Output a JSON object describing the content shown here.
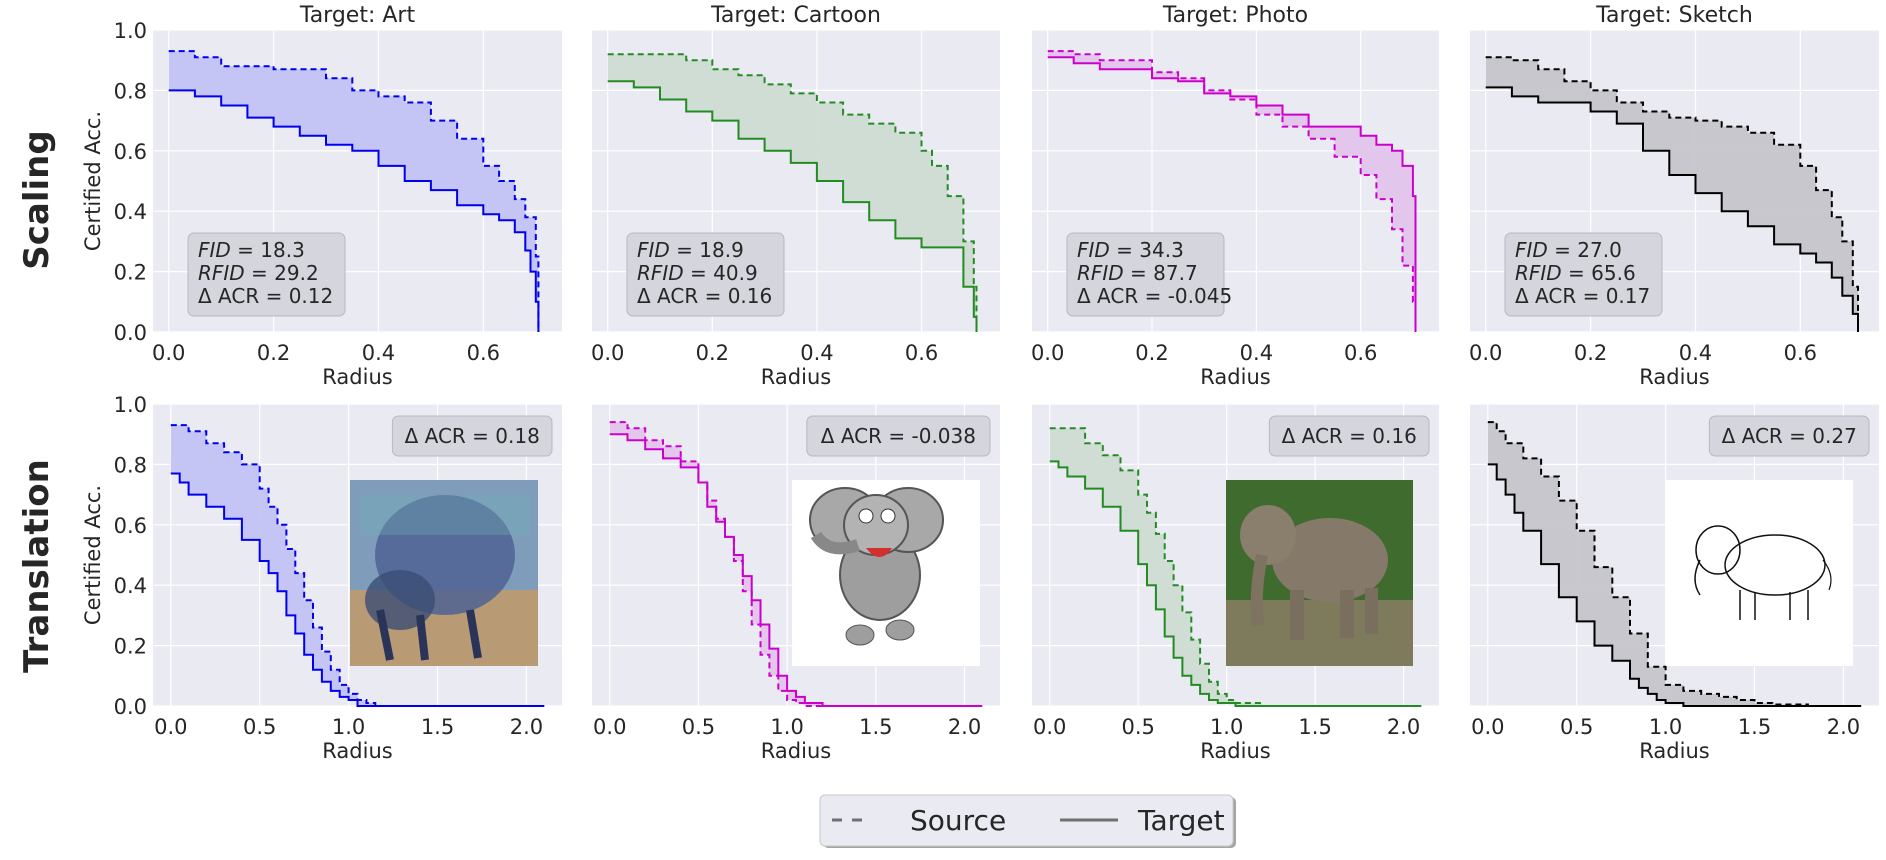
{
  "row_labels": [
    "Scaling",
    "Translation"
  ],
  "legend": {
    "source": "Source",
    "target": "Target"
  },
  "colors": {
    "Art": "#0000ee",
    "Cartoon": "#228b22",
    "Photo": "#cc00cc",
    "Sketch": "#000000",
    "panel_bg": "#eaeaf2",
    "grid": "#ffffff"
  },
  "chart_data": [
    {
      "type": "line",
      "row": "Scaling",
      "title": "Target: Art",
      "xlabel": "Radius",
      "ylabel": "Certified Acc.",
      "xlim": [
        -0.03,
        0.75
      ],
      "ylim": [
        0,
        1
      ],
      "xticks": [
        0.0,
        0.2,
        0.4,
        0.6
      ],
      "yticks": [
        0.0,
        0.2,
        0.4,
        0.6,
        0.8,
        1.0
      ],
      "color": "#0000ee",
      "annotation": [
        "FID = 18.3",
        "RFID = 29.2",
        "Δ ACR = 0.12"
      ],
      "series": [
        {
          "name": "Source",
          "style": "dashed",
          "x": [
            0,
            0.05,
            0.1,
            0.2,
            0.3,
            0.35,
            0.4,
            0.45,
            0.5,
            0.55,
            0.6,
            0.63,
            0.66,
            0.68,
            0.7,
            0.705
          ],
          "y": [
            0.93,
            0.91,
            0.88,
            0.87,
            0.84,
            0.8,
            0.78,
            0.76,
            0.7,
            0.64,
            0.55,
            0.5,
            0.44,
            0.38,
            0.25,
            0.0
          ]
        },
        {
          "name": "Target",
          "style": "solid",
          "x": [
            0,
            0.05,
            0.1,
            0.15,
            0.2,
            0.25,
            0.3,
            0.35,
            0.4,
            0.45,
            0.5,
            0.55,
            0.6,
            0.63,
            0.66,
            0.68,
            0.69,
            0.7,
            0.705
          ],
          "y": [
            0.8,
            0.78,
            0.75,
            0.71,
            0.68,
            0.65,
            0.62,
            0.6,
            0.55,
            0.5,
            0.47,
            0.42,
            0.39,
            0.37,
            0.33,
            0.27,
            0.2,
            0.1,
            0.0
          ]
        }
      ]
    },
    {
      "type": "line",
      "row": "Scaling",
      "title": "Target: Cartoon",
      "xlabel": "Radius",
      "ylabel": "",
      "xlim": [
        -0.03,
        0.75
      ],
      "ylim": [
        0,
        1
      ],
      "xticks": [
        0.0,
        0.2,
        0.4,
        0.6
      ],
      "yticks": [
        0.0,
        0.2,
        0.4,
        0.6,
        0.8,
        1.0
      ],
      "color": "#228b22",
      "annotation": [
        "FID = 18.9",
        "RFID = 40.9",
        "Δ ACR = 0.16"
      ],
      "series": [
        {
          "name": "Source",
          "style": "dashed",
          "x": [
            0,
            0.1,
            0.15,
            0.2,
            0.25,
            0.3,
            0.35,
            0.4,
            0.45,
            0.5,
            0.55,
            0.6,
            0.62,
            0.65,
            0.68,
            0.7,
            0.705
          ],
          "y": [
            0.92,
            0.92,
            0.9,
            0.87,
            0.85,
            0.82,
            0.79,
            0.76,
            0.72,
            0.69,
            0.66,
            0.6,
            0.55,
            0.45,
            0.3,
            0.15,
            0.0
          ]
        },
        {
          "name": "Target",
          "style": "solid",
          "x": [
            0,
            0.05,
            0.1,
            0.15,
            0.2,
            0.25,
            0.3,
            0.35,
            0.4,
            0.45,
            0.5,
            0.55,
            0.6,
            0.65,
            0.68,
            0.7,
            0.705
          ],
          "y": [
            0.83,
            0.81,
            0.77,
            0.73,
            0.7,
            0.64,
            0.6,
            0.56,
            0.5,
            0.43,
            0.37,
            0.31,
            0.28,
            0.28,
            0.15,
            0.05,
            0.0
          ]
        }
      ]
    },
    {
      "type": "line",
      "row": "Scaling",
      "title": "Target: Photo",
      "xlabel": "Radius",
      "ylabel": "",
      "xlim": [
        -0.03,
        0.75
      ],
      "ylim": [
        0,
        1
      ],
      "xticks": [
        0.0,
        0.2,
        0.4,
        0.6
      ],
      "yticks": [
        0.0,
        0.2,
        0.4,
        0.6,
        0.8,
        1.0
      ],
      "color": "#cc00cc",
      "annotation": [
        "FID = 34.3",
        "RFID = 87.7",
        "Δ ACR = -0.045"
      ],
      "series": [
        {
          "name": "Source",
          "style": "dashed",
          "x": [
            0,
            0.05,
            0.1,
            0.2,
            0.25,
            0.3,
            0.35,
            0.4,
            0.45,
            0.5,
            0.55,
            0.6,
            0.63,
            0.66,
            0.68,
            0.7,
            0.705
          ],
          "y": [
            0.93,
            0.92,
            0.9,
            0.86,
            0.84,
            0.8,
            0.77,
            0.72,
            0.68,
            0.64,
            0.58,
            0.52,
            0.44,
            0.34,
            0.22,
            0.1,
            0.0
          ]
        },
        {
          "name": "Target",
          "style": "solid",
          "x": [
            0,
            0.05,
            0.1,
            0.2,
            0.25,
            0.3,
            0.35,
            0.4,
            0.45,
            0.5,
            0.55,
            0.6,
            0.63,
            0.66,
            0.68,
            0.7,
            0.705
          ],
          "y": [
            0.91,
            0.89,
            0.87,
            0.84,
            0.83,
            0.79,
            0.78,
            0.75,
            0.72,
            0.68,
            0.68,
            0.65,
            0.62,
            0.6,
            0.55,
            0.45,
            0.0
          ]
        }
      ]
    },
    {
      "type": "line",
      "row": "Scaling",
      "title": "Target: Sketch",
      "xlabel": "Radius",
      "ylabel": "",
      "xlim": [
        -0.03,
        0.75
      ],
      "ylim": [
        0,
        1
      ],
      "xticks": [
        0.0,
        0.2,
        0.4,
        0.6
      ],
      "yticks": [
        0.0,
        0.2,
        0.4,
        0.6,
        0.8,
        1.0
      ],
      "color": "#000000",
      "annotation": [
        "FID = 27.0",
        "RFID = 65.6",
        "Δ ACR = 0.17"
      ],
      "series": [
        {
          "name": "Source",
          "style": "dashed",
          "x": [
            0,
            0.05,
            0.1,
            0.15,
            0.2,
            0.25,
            0.3,
            0.35,
            0.4,
            0.45,
            0.5,
            0.55,
            0.6,
            0.63,
            0.66,
            0.68,
            0.7,
            0.71
          ],
          "y": [
            0.91,
            0.9,
            0.87,
            0.83,
            0.8,
            0.76,
            0.73,
            0.71,
            0.7,
            0.68,
            0.66,
            0.62,
            0.55,
            0.47,
            0.38,
            0.3,
            0.15,
            0.0
          ]
        },
        {
          "name": "Target",
          "style": "solid",
          "x": [
            0,
            0.05,
            0.1,
            0.15,
            0.2,
            0.25,
            0.3,
            0.35,
            0.4,
            0.45,
            0.5,
            0.55,
            0.6,
            0.63,
            0.66,
            0.68,
            0.7,
            0.71
          ],
          "y": [
            0.81,
            0.78,
            0.76,
            0.76,
            0.73,
            0.69,
            0.6,
            0.52,
            0.46,
            0.4,
            0.35,
            0.29,
            0.26,
            0.23,
            0.18,
            0.12,
            0.06,
            0.0
          ]
        }
      ]
    },
    {
      "type": "line",
      "row": "Translation",
      "title": "",
      "xlabel": "Radius",
      "ylabel": "Certified Acc.",
      "xlim": [
        -0.1,
        2.2
      ],
      "ylim": [
        0,
        1
      ],
      "xticks": [
        0.0,
        0.5,
        1.0,
        1.5,
        2.0
      ],
      "yticks": [
        0.0,
        0.2,
        0.4,
        0.6,
        0.8,
        1.0
      ],
      "color": "#0000ee",
      "annotation": [
        "Δ ACR = 0.18"
      ],
      "series": [
        {
          "name": "Source",
          "style": "dashed",
          "x": [
            0,
            0.1,
            0.2,
            0.3,
            0.4,
            0.5,
            0.55,
            0.6,
            0.65,
            0.7,
            0.75,
            0.8,
            0.85,
            0.9,
            0.95,
            1.0,
            1.05,
            1.1,
            1.15,
            2.1
          ],
          "y": [
            0.93,
            0.91,
            0.87,
            0.84,
            0.8,
            0.72,
            0.66,
            0.6,
            0.52,
            0.44,
            0.35,
            0.26,
            0.18,
            0.12,
            0.07,
            0.04,
            0.02,
            0.01,
            0.0,
            0.0
          ]
        },
        {
          "name": "Target",
          "style": "solid",
          "x": [
            0,
            0.05,
            0.1,
            0.2,
            0.3,
            0.4,
            0.5,
            0.55,
            0.6,
            0.65,
            0.7,
            0.75,
            0.8,
            0.85,
            0.9,
            0.95,
            1.0,
            1.05,
            2.1
          ],
          "y": [
            0.77,
            0.74,
            0.7,
            0.66,
            0.62,
            0.55,
            0.48,
            0.44,
            0.38,
            0.3,
            0.24,
            0.17,
            0.12,
            0.08,
            0.05,
            0.03,
            0.02,
            0.0,
            0.0
          ]
        }
      ]
    },
    {
      "type": "line",
      "row": "Translation",
      "title": "",
      "xlabel": "Radius",
      "ylabel": "",
      "xlim": [
        -0.1,
        2.2
      ],
      "ylim": [
        0,
        1
      ],
      "xticks": [
        0.0,
        0.5,
        1.0,
        1.5,
        2.0
      ],
      "yticks": [
        0.0,
        0.2,
        0.4,
        0.6,
        0.8,
        1.0
      ],
      "color": "#cc00cc",
      "annotation": [
        "Δ ACR = -0.038"
      ],
      "series": [
        {
          "name": "Source",
          "style": "dashed",
          "x": [
            0,
            0.1,
            0.2,
            0.3,
            0.4,
            0.5,
            0.55,
            0.6,
            0.65,
            0.7,
            0.75,
            0.8,
            0.85,
            0.9,
            0.95,
            1.0,
            1.05,
            1.1,
            2.1
          ],
          "y": [
            0.94,
            0.92,
            0.88,
            0.86,
            0.81,
            0.74,
            0.68,
            0.62,
            0.56,
            0.48,
            0.38,
            0.27,
            0.17,
            0.1,
            0.05,
            0.02,
            0.01,
            0.0,
            0.0
          ]
        },
        {
          "name": "Target",
          "style": "solid",
          "x": [
            0,
            0.1,
            0.2,
            0.3,
            0.4,
            0.5,
            0.55,
            0.6,
            0.65,
            0.7,
            0.75,
            0.8,
            0.85,
            0.9,
            0.95,
            1.0,
            1.05,
            1.1,
            1.2,
            2.1
          ],
          "y": [
            0.9,
            0.88,
            0.85,
            0.82,
            0.79,
            0.74,
            0.66,
            0.61,
            0.56,
            0.5,
            0.43,
            0.35,
            0.27,
            0.19,
            0.1,
            0.05,
            0.03,
            0.01,
            0.0,
            0.0
          ]
        }
      ]
    },
    {
      "type": "line",
      "row": "Translation",
      "title": "",
      "xlabel": "Radius",
      "ylabel": "",
      "xlim": [
        -0.1,
        2.2
      ],
      "ylim": [
        0,
        1
      ],
      "xticks": [
        0.0,
        0.5,
        1.0,
        1.5,
        2.0
      ],
      "yticks": [
        0.0,
        0.2,
        0.4,
        0.6,
        0.8,
        1.0
      ],
      "color": "#228b22",
      "annotation": [
        "Δ ACR = 0.16"
      ],
      "series": [
        {
          "name": "Source",
          "style": "dashed",
          "x": [
            0,
            0.1,
            0.2,
            0.3,
            0.4,
            0.5,
            0.55,
            0.6,
            0.65,
            0.7,
            0.75,
            0.8,
            0.85,
            0.9,
            0.95,
            1.0,
            1.05,
            1.1,
            1.2,
            2.1
          ],
          "y": [
            0.92,
            0.92,
            0.87,
            0.83,
            0.78,
            0.7,
            0.64,
            0.57,
            0.48,
            0.4,
            0.31,
            0.22,
            0.14,
            0.08,
            0.04,
            0.02,
            0.01,
            0.01,
            0.0,
            0.0
          ]
        },
        {
          "name": "Target",
          "style": "solid",
          "x": [
            0,
            0.05,
            0.1,
            0.2,
            0.3,
            0.4,
            0.5,
            0.55,
            0.6,
            0.65,
            0.7,
            0.75,
            0.8,
            0.85,
            0.9,
            0.95,
            1.0,
            1.05,
            1.1,
            2.1
          ],
          "y": [
            0.81,
            0.79,
            0.76,
            0.72,
            0.66,
            0.58,
            0.47,
            0.4,
            0.32,
            0.23,
            0.16,
            0.1,
            0.07,
            0.04,
            0.02,
            0.01,
            0.01,
            0.0,
            0.0,
            0.0
          ]
        }
      ]
    },
    {
      "type": "line",
      "row": "Translation",
      "title": "",
      "xlabel": "Radius",
      "ylabel": "",
      "xlim": [
        -0.1,
        2.2
      ],
      "ylim": [
        0,
        1
      ],
      "xticks": [
        0.0,
        0.5,
        1.0,
        1.5,
        2.0
      ],
      "yticks": [
        0.0,
        0.2,
        0.4,
        0.6,
        0.8,
        1.0
      ],
      "color": "#000000",
      "annotation": [
        "Δ ACR = 0.27"
      ],
      "series": [
        {
          "name": "Source",
          "style": "dashed",
          "x": [
            0,
            0.05,
            0.1,
            0.2,
            0.3,
            0.4,
            0.5,
            0.6,
            0.7,
            0.8,
            0.9,
            1.0,
            1.1,
            1.2,
            1.3,
            1.4,
            1.5,
            1.6,
            1.8,
            2.1
          ],
          "y": [
            0.94,
            0.91,
            0.87,
            0.82,
            0.76,
            0.68,
            0.58,
            0.46,
            0.36,
            0.24,
            0.13,
            0.07,
            0.05,
            0.04,
            0.03,
            0.02,
            0.01,
            0.005,
            0.0,
            0.0
          ]
        },
        {
          "name": "Target",
          "style": "solid",
          "x": [
            0,
            0.05,
            0.1,
            0.15,
            0.2,
            0.3,
            0.4,
            0.5,
            0.6,
            0.7,
            0.8,
            0.85,
            0.9,
            0.95,
            1.0,
            1.05,
            1.1,
            1.2,
            1.3,
            2.1
          ],
          "y": [
            0.8,
            0.75,
            0.7,
            0.64,
            0.58,
            0.47,
            0.36,
            0.28,
            0.2,
            0.15,
            0.09,
            0.06,
            0.04,
            0.02,
            0.01,
            0.01,
            0.0,
            0.0,
            0.0,
            0.0
          ]
        }
      ]
    }
  ]
}
